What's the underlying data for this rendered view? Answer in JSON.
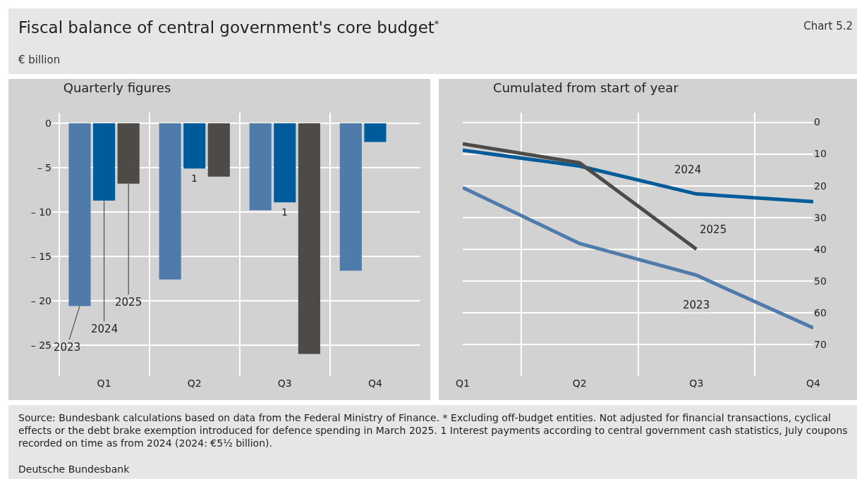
{
  "chart_data": [
    {
      "type": "bar",
      "title": "Quarterly figures",
      "categories": [
        "Q1",
        "Q2",
        "Q3",
        "Q4"
      ],
      "series": [
        {
          "name": "2023",
          "color": "#4f7bab",
          "values": [
            -20.6,
            -17.6,
            -9.8,
            -16.6
          ]
        },
        {
          "name": "2024",
          "color": "#005b9a",
          "values": [
            -8.7,
            -5.1,
            -8.9,
            -2.1
          ]
        },
        {
          "name": "2025",
          "color": "#4d4a48",
          "values": [
            -6.8,
            -6.0,
            -26.0,
            null
          ]
        }
      ],
      "ylim": [
        -28.5,
        1.2
      ],
      "yticks": [
        0,
        {
          "value": -5,
          "label": "– 5"
        },
        {
          "value": -10,
          "label": "– 10"
        },
        {
          "value": -15,
          "label": "– 15"
        },
        {
          "value": -20,
          "label": "– 20"
        },
        {
          "value": -25,
          "label": "– 25"
        }
      ],
      "grid": true,
      "legend": false,
      "annotations": [
        "Fiscal balance of central government's core budget$^{*}$",
        "Chart 5.2",
        "€ billion",
        "Source: Bundesbank calculations based on data from the Federal Ministry of Finance. * Excluding off-budget entities. Not adjusted for financial transactions, cyclical effects or the debt brake exemption introduced for defence spending in March 2025. 1 Interest payments according to central government cash statistics, July coupons recorded on time as from 2024 (2024: €5½ billion).",
        "Deutsche Bundesbank",
        {
          "text": "1",
          "x": "Q2",
          "y": -5.1
        },
        {
          "text": "1",
          "x": "Q3",
          "y": -8.9
        }
      ]
    },
    {
      "type": "line",
      "title": "Cumulated from start of year",
      "categories": [
        "Q1",
        "Q2",
        "Q3",
        "Q4"
      ],
      "series": [
        {
          "name": "2023",
          "color": "#4f7bab",
          "axis": "y2",
          "values": [
            -20.6,
            -38.2,
            -48.2,
            -64.8
          ]
        },
        {
          "name": "2024",
          "color": "#005b9a",
          "axis": "y2",
          "values": [
            -8.8,
            -13.8,
            -22.6,
            -25.0
          ]
        },
        {
          "name": "2025",
          "color": "#4d4a48",
          "axis": "y2",
          "values": [
            -6.8,
            -12.8,
            -40.0,
            null
          ]
        }
      ],
      "y2lim": [
        -80,
        3
      ],
      "y2ticks": [
        0,
        {
          "value": -10,
          "label": "10"
        },
        {
          "value": -20,
          "label": "20"
        },
        {
          "value": -30,
          "label": "30"
        },
        {
          "value": -40,
          "label": "40"
        },
        {
          "value": -50,
          "label": "50"
        },
        {
          "value": -60,
          "label": "60"
        },
        {
          "value": -70,
          "label": "70"
        }
      ],
      "grid": true,
      "legend": false,
      "marker": "none",
      "line_style": "solid"
    }
  ]
}
